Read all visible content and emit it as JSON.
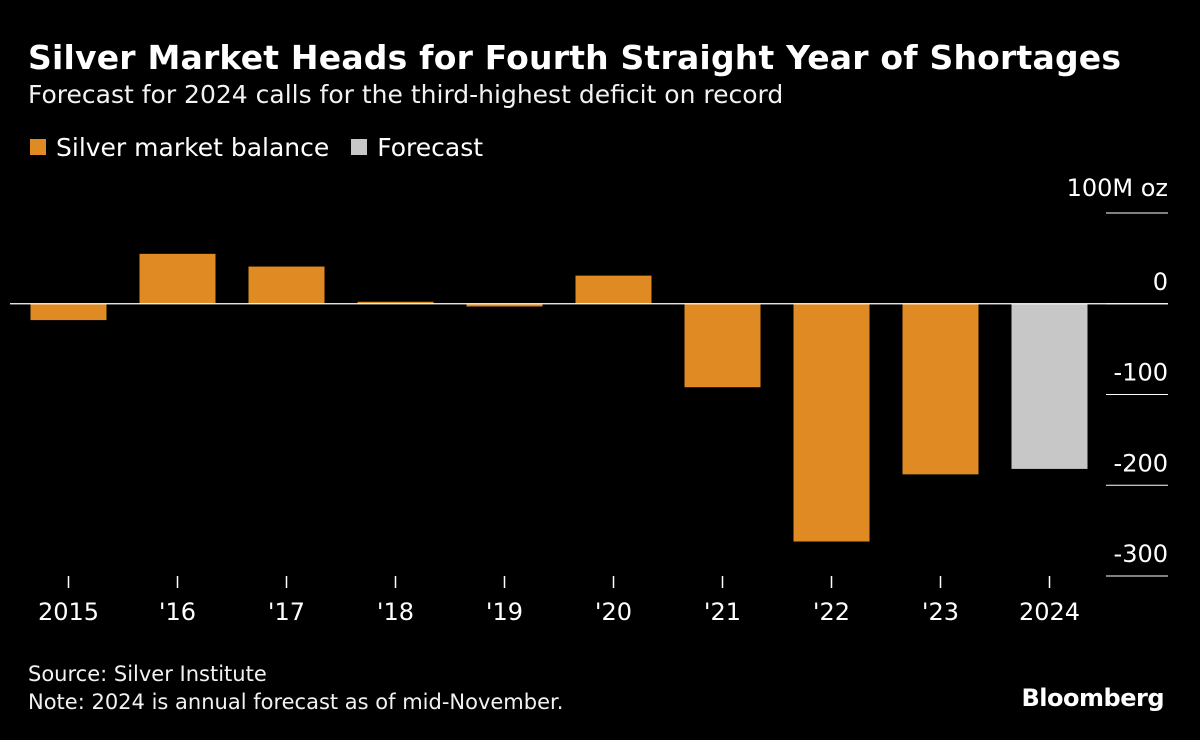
{
  "header": {
    "title": "Silver Market Heads for Fourth Straight Year of Shortages",
    "subtitle": "Forecast for 2024 calls for the third-highest deficit on record"
  },
  "legend": {
    "items": [
      {
        "label": "Silver market balance",
        "color": "#e08a23"
      },
      {
        "label": "Forecast",
        "color": "#c7c7c7"
      }
    ]
  },
  "footer": {
    "source": "Source: Silver Institute",
    "note": "Note: 2024 is annual forecast as of mid-November.",
    "brand": "Bloomberg"
  },
  "chart_data": {
    "type": "bar",
    "title": "Silver Market Heads for Fourth Straight Year of Shortages",
    "subtitle": "Forecast for 2024 calls for the third-highest deficit on record",
    "unit_label": "100M oz",
    "xlabel": "",
    "ylabel": "Million ounces",
    "categories": [
      "2015",
      "'16",
      "'17",
      "'18",
      "'19",
      "'20",
      "'21",
      "'22",
      "'23",
      "2024"
    ],
    "values": [
      -18,
      55,
      41,
      2,
      -3,
      31,
      -92,
      -262,
      -188,
      -182
    ],
    "forecast": [
      false,
      false,
      false,
      false,
      false,
      false,
      false,
      false,
      false,
      true
    ],
    "colors": {
      "actual": "#e08a23",
      "forecast": "#c7c7c7"
    },
    "ylim": [
      -300,
      100
    ],
    "yticks": [
      {
        "value": 100,
        "label": "100M oz"
      },
      {
        "value": 0,
        "label": "0"
      },
      {
        "value": -100,
        "label": "-100"
      },
      {
        "value": -200,
        "label": "-200"
      },
      {
        "value": -300,
        "label": "-300"
      }
    ],
    "grid": false,
    "legend_position": "top-left"
  }
}
